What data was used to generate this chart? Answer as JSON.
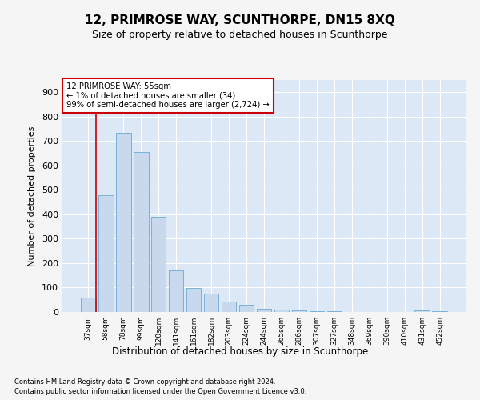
{
  "title": "12, PRIMROSE WAY, SCUNTHORPE, DN15 8XQ",
  "subtitle": "Size of property relative to detached houses in Scunthorpe",
  "xlabel": "Distribution of detached houses by size in Scunthorpe",
  "ylabel": "Number of detached properties",
  "categories": [
    "37sqm",
    "58sqm",
    "78sqm",
    "99sqm",
    "120sqm",
    "141sqm",
    "161sqm",
    "182sqm",
    "203sqm",
    "224sqm",
    "244sqm",
    "265sqm",
    "286sqm",
    "307sqm",
    "327sqm",
    "348sqm",
    "369sqm",
    "390sqm",
    "410sqm",
    "431sqm",
    "452sqm"
  ],
  "values": [
    60,
    477,
    735,
    656,
    390,
    170,
    97,
    76,
    43,
    28,
    14,
    10,
    7,
    4,
    3,
    1,
    0,
    0,
    0,
    8,
    4
  ],
  "bar_color": "#c8d9ee",
  "bar_edge_color": "#6aaad4",
  "annotation_box_text": "12 PRIMROSE WAY: 55sqm\n← 1% of detached houses are smaller (34)\n99% of semi-detached houses are larger (2,724) →",
  "ylim": [
    0,
    950
  ],
  "yticks": [
    0,
    100,
    200,
    300,
    400,
    500,
    600,
    700,
    800,
    900
  ],
  "bg_color": "#dce8f5",
  "grid_color": "#ffffff",
  "fig_bg_color": "#f5f5f5",
  "footer_line1": "Contains HM Land Registry data © Crown copyright and database right 2024.",
  "footer_line2": "Contains public sector information licensed under the Open Government Licence v3.0.",
  "red_line_x": 0.425,
  "title_fontsize": 11,
  "subtitle_fontsize": 9
}
